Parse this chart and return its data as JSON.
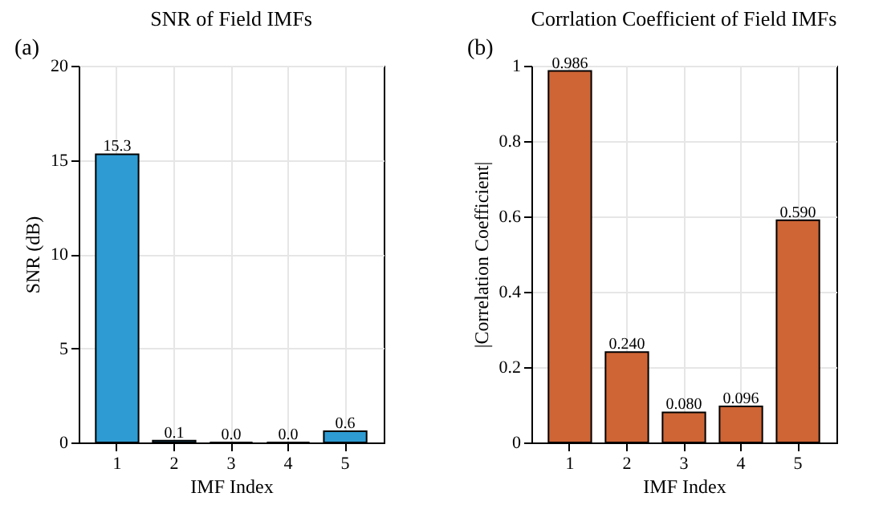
{
  "chart_data": [
    {
      "type": "bar",
      "title": "SNR of Field IMFs",
      "xlabel": "IMF Index",
      "ylabel": "SNR (dB)",
      "annotations": [
        "(a)"
      ],
      "categories": [
        "1",
        "2",
        "3",
        "4",
        "5"
      ],
      "values": [
        15.3,
        0.1,
        0.0,
        0.0,
        0.6
      ],
      "value_labels": [
        "15.3",
        "0.1",
        "0.0",
        "0.0",
        "0.6"
      ],
      "color": "#2e9bd3",
      "ylim": [
        0,
        20
      ],
      "yticks": [
        0,
        5,
        10,
        15,
        20
      ],
      "grid": true
    },
    {
      "type": "bar",
      "title": "Corrlation Coefficient of Field IMFs",
      "xlabel": "IMF Index",
      "ylabel": "|Correlation Coefficient|",
      "annotations": [
        "(b)"
      ],
      "categories": [
        "1",
        "2",
        "3",
        "4",
        "5"
      ],
      "values": [
        0.986,
        0.24,
        0.08,
        0.096,
        0.59
      ],
      "value_labels": [
        "0.986",
        "0.240",
        "0.080",
        "0.096",
        "0.590"
      ],
      "color": "#cf6535",
      "ylim": [
        0,
        1
      ],
      "yticks": [
        0,
        0.2,
        0.4,
        0.6,
        0.8,
        1
      ],
      "grid": true
    }
  ]
}
